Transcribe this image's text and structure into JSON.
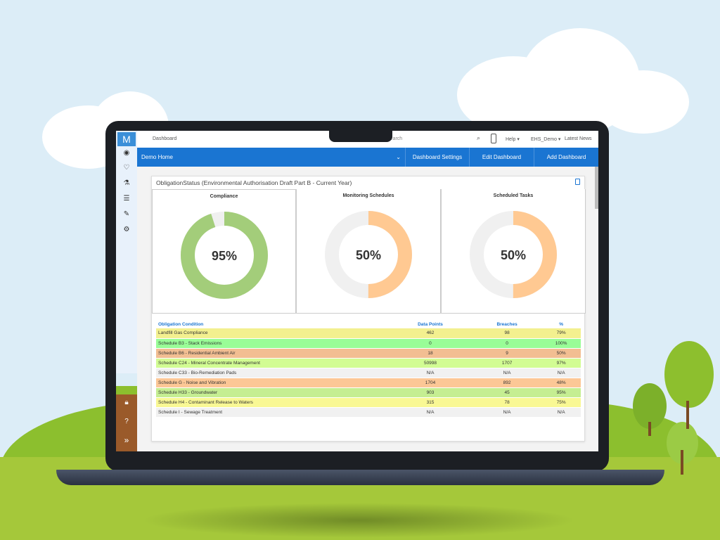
{
  "topbar": {
    "breadcrumb": "Dashboard",
    "search_placeholder": "Search",
    "help": "Help ▾",
    "user": "EHS_Demo ▾",
    "news": "Latest News"
  },
  "bar": {
    "dashboard": "Demo Home",
    "settings": "Dashboard Settings",
    "edit": "Edit Dashboard",
    "add": "Add Dashboard"
  },
  "panel": {
    "title": "ObligationStatus (Environmental Authorisation Draft Part B - Current Year)"
  },
  "donuts": [
    {
      "title": "Compliance",
      "label": "95%",
      "value": 95,
      "color": "#a3cd7a"
    },
    {
      "title": "Monitoring Schedules",
      "label": "50%",
      "value": 50,
      "color": "#ffc992"
    },
    {
      "title": "Scheduled Tasks",
      "label": "50%",
      "value": 50,
      "color": "#ffc992"
    }
  ],
  "table": {
    "headers": [
      "Obligation Condition",
      "Data Points",
      "Breaches",
      "%"
    ],
    "rows": [
      {
        "cells": [
          "Landfill Gas Compliance",
          "462",
          "98",
          "79%"
        ],
        "color": "#f3f08f"
      },
      {
        "cells": [
          "Schedule B3 - Stack Emissions",
          "0",
          "0",
          "100%"
        ],
        "color": "#99fd97"
      },
      {
        "cells": [
          "Schedule B6 - Residential Ambient Air",
          "18",
          "9",
          "50%"
        ],
        "color": "#f2be92"
      },
      {
        "cells": [
          "Schedule C24 - Mineral Concentrate Management",
          "50998",
          "1707",
          "97%"
        ],
        "color": "#d2fc93"
      },
      {
        "cells": [
          "Schedule C33 - Bio-Remediation Pads",
          "N/A",
          "N/A",
          "N/A"
        ],
        "color": "#f1f1f1"
      },
      {
        "cells": [
          "Schedule G - Noise and Vibration",
          "1704",
          "892",
          "48%"
        ],
        "color": "#fcc796"
      },
      {
        "cells": [
          "Schedule H33 - Groundwater",
          "903",
          "45",
          "95%"
        ],
        "color": "#c5ee92"
      },
      {
        "cells": [
          "Schedule H4 - Contaminant Release to Waters",
          "315",
          "78",
          "75%"
        ],
        "color": "#f9f894"
      },
      {
        "cells": [
          "Schedule I - Sewage Treatment",
          "N/A",
          "N/A",
          "N/A"
        ],
        "color": "#f1f1f1"
      }
    ]
  }
}
